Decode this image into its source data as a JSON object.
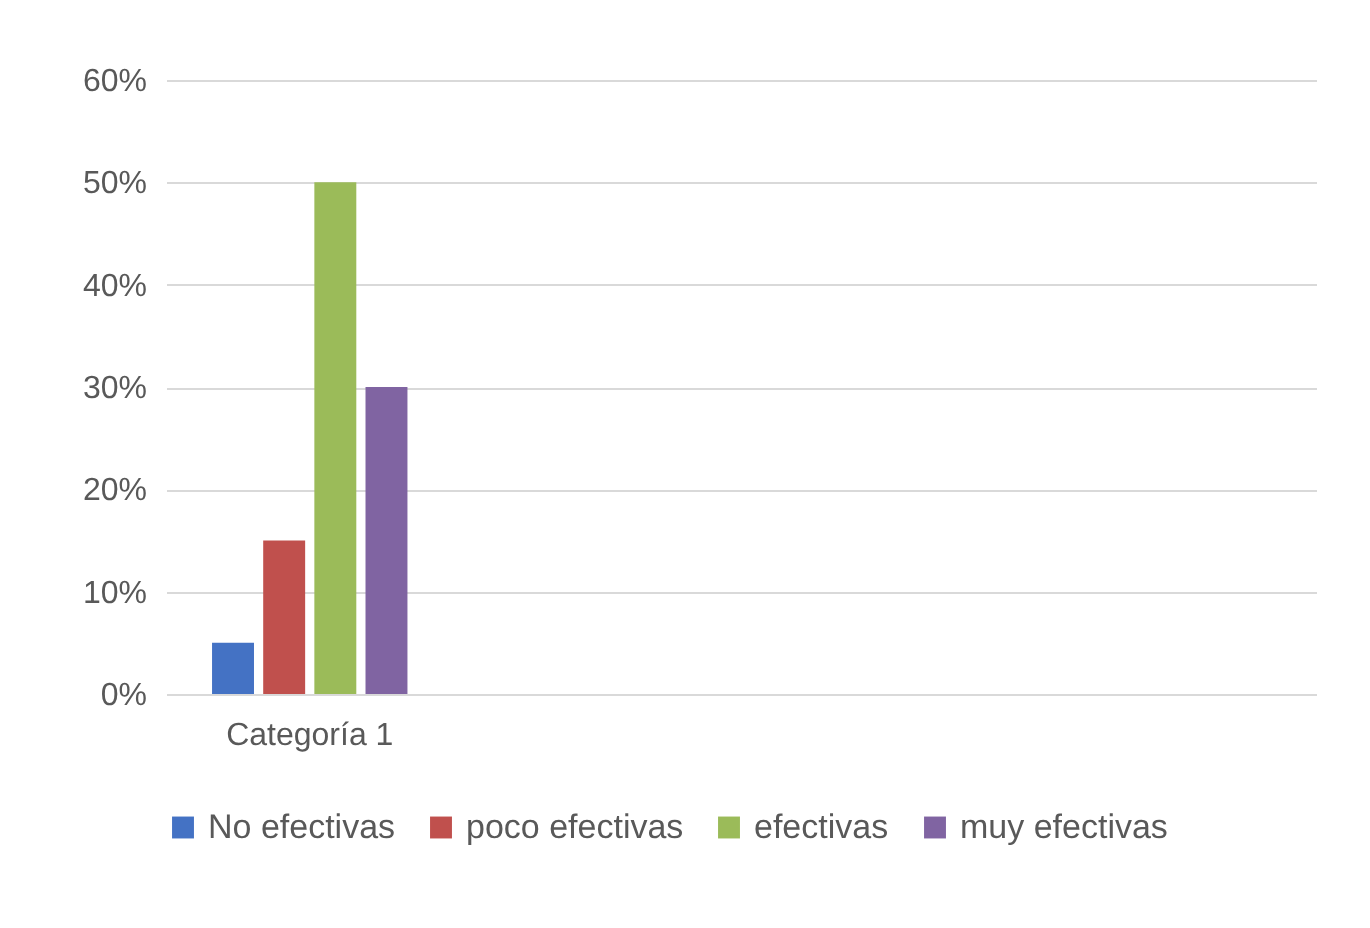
{
  "chart_data": {
    "type": "bar",
    "categories": [
      "Categoría 1",
      null,
      null,
      null
    ],
    "series": [
      {
        "name": "No efectivas",
        "color": "#4472c4",
        "values": [
          5,
          null,
          null,
          null
        ]
      },
      {
        "name": "poco efectivas",
        "color": "#c0504d",
        "values": [
          15,
          null,
          null,
          null
        ]
      },
      {
        "name": "efectivas",
        "color": "#9bbb59",
        "values": [
          50,
          null,
          null,
          null
        ]
      },
      {
        "name": "muy efectivas",
        "color": "#8064a2",
        "values": [
          30,
          null,
          null,
          null
        ]
      }
    ],
    "ylim": [
      0,
      60
    ],
    "yticks": [
      {
        "value": 0,
        "label": "0%"
      },
      {
        "value": 10,
        "label": "10%"
      },
      {
        "value": 20,
        "label": "20%"
      },
      {
        "value": 30,
        "label": "30%"
      },
      {
        "value": 40,
        "label": "40%"
      },
      {
        "value": 50,
        "label": "50%"
      },
      {
        "value": 60,
        "label": "60%"
      }
    ],
    "grid": "y",
    "legend": "bottom"
  }
}
